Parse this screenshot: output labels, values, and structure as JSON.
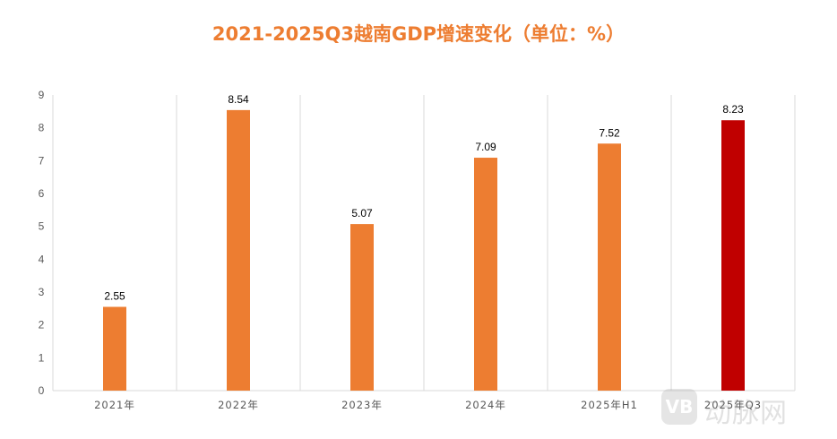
{
  "chart_data": {
    "type": "bar",
    "title": "2021-2025Q3越南GDP增速变化（单位：%）",
    "categories": [
      "2021年",
      "2022年",
      "2023年",
      "2024年",
      "2025年H1",
      "2025年Q3"
    ],
    "values": [
      2.55,
      8.54,
      5.07,
      7.09,
      7.52,
      8.23
    ],
    "data_labels": [
      "2.55",
      "8.54",
      "5.07",
      "7.09",
      "7.52",
      "8.23"
    ],
    "yticks": [
      "0",
      "1",
      "2",
      "3",
      "4",
      "5",
      "6",
      "7",
      "8",
      "9"
    ],
    "ylim": [
      0,
      9
    ],
    "xlabel": "",
    "ylabel": "",
    "grid": "vertical separators between categories",
    "legend": "none",
    "colors": [
      "#ED7D31",
      "#ED7D31",
      "#ED7D31",
      "#ED7D31",
      "#ED7D31",
      "#C00000"
    ]
  },
  "watermark": {
    "badge": "VB",
    "text": "动脉网"
  }
}
